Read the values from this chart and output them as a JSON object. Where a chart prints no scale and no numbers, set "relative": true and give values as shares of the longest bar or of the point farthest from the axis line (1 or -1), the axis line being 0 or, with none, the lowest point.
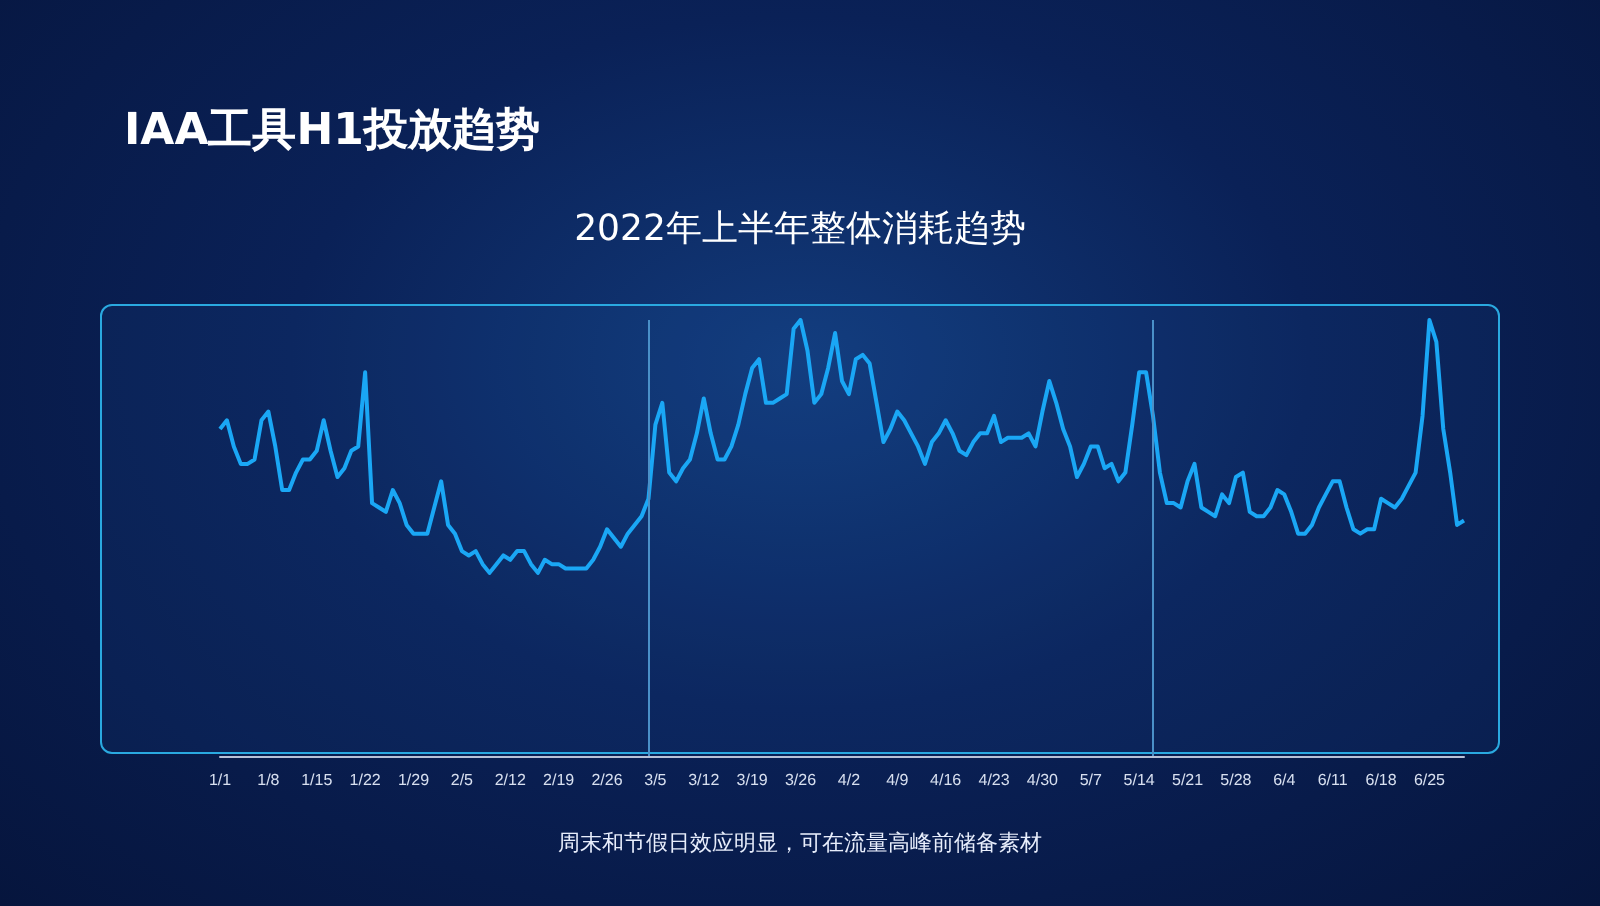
{
  "chart_data": {
    "type": "line",
    "title": "IAA工具H1投放趋势",
    "subtitle": "2022年上半年整体消耗趋势",
    "annotations": [
      "周末和节假日效应明显，可在流量高峰前储备素材"
    ],
    "relative": true,
    "color": "#1aa7f5",
    "x": [
      "--01-01",
      "--01-02",
      "--01-03",
      "--01-04",
      "--01-05",
      "--01-06",
      "--01-07",
      "--01-08",
      "--01-09",
      "--01-10",
      "--01-11",
      "--01-12",
      "--01-13",
      "--01-14",
      "--01-15",
      "--01-16",
      "--01-17",
      "--01-18",
      "--01-19",
      "--01-20",
      "--01-21",
      "--01-22",
      "--01-23",
      "--01-24",
      "--01-25",
      "--01-26",
      "--01-27",
      "--01-28",
      "--01-29",
      "--01-30",
      "--01-31",
      "--02-01",
      "--02-02",
      "--02-03",
      "--02-04",
      "--02-05",
      "--02-06",
      "--02-07",
      "--02-08",
      "--02-09",
      "--02-10",
      "--02-11",
      "--02-12",
      "--02-13",
      "--02-14",
      "--02-15",
      "--02-16",
      "--02-17",
      "--02-18",
      "--02-19",
      "--02-20",
      "--02-21",
      "--02-22",
      "--02-23",
      "--02-24",
      "--02-25",
      "--02-26",
      "--02-27",
      "--02-28",
      "--03-01",
      "--03-02",
      "--03-03",
      "--03-04",
      "--03-05",
      "--03-06",
      "--03-07",
      "--03-08",
      "--03-09",
      "--03-10",
      "--03-11",
      "--03-12",
      "--03-13",
      "--03-14",
      "--03-15",
      "--03-16",
      "--03-17",
      "--03-18",
      "--03-19",
      "--03-20",
      "--03-21",
      "--03-22",
      "--03-23",
      "--03-24",
      "--03-25",
      "--03-26",
      "--03-27",
      "--03-28",
      "--03-29",
      "--03-30",
      "--03-31",
      "--04-01",
      "--04-02",
      "--04-03",
      "--04-04",
      "--04-05",
      "--04-06",
      "--04-07",
      "--04-08",
      "--04-09",
      "--04-10",
      "--04-11",
      "--04-12",
      "--04-13",
      "--04-14",
      "--04-15",
      "--04-16",
      "--04-17",
      "--04-18",
      "--04-19",
      "--04-20",
      "--04-21",
      "--04-22",
      "--04-23",
      "--04-24",
      "--04-25",
      "--04-26",
      "--04-27",
      "--04-28",
      "--04-29",
      "--04-30",
      "--05-01",
      "--05-02",
      "--05-03",
      "--05-04",
      "--05-05",
      "--05-06",
      "--05-07",
      "--05-08",
      "--05-09",
      "--05-10",
      "--05-11",
      "--05-12",
      "--05-13",
      "--05-14",
      "--05-15",
      "--05-16",
      "--05-17",
      "--05-18",
      "--05-19",
      "--05-20",
      "--05-21",
      "--05-22",
      "--05-23",
      "--05-24",
      "--05-25",
      "--05-26",
      "--05-27",
      "--05-28",
      "--05-29",
      "--05-30",
      "--05-31",
      "--06-01",
      "--06-02",
      "--06-03",
      "--06-04",
      "--06-05",
      "--06-06",
      "--06-07",
      "--06-08",
      "--06-09",
      "--06-10",
      "--06-11",
      "--06-12",
      "--06-13",
      "--06-14",
      "--06-15",
      "--06-16",
      "--06-17",
      "--06-18",
      "--06-19",
      "--06-20",
      "--06-21",
      "--06-22",
      "--06-23",
      "--06-24",
      "--06-25",
      "--06-26",
      "--06-27",
      "--06-28",
      "--06-29",
      "--06-30"
    ],
    "values": [
      0.75,
      0.77,
      0.71,
      0.67,
      0.67,
      0.68,
      0.77,
      0.79,
      0.71,
      0.61,
      0.61,
      0.65,
      0.68,
      0.68,
      0.7,
      0.77,
      0.7,
      0.64,
      0.66,
      0.7,
      0.71,
      0.88,
      0.58,
      0.57,
      0.56,
      0.61,
      0.58,
      0.53,
      0.51,
      0.51,
      0.51,
      0.57,
      0.63,
      0.53,
      0.51,
      0.47,
      0.46,
      0.47,
      0.44,
      0.42,
      0.44,
      0.46,
      0.45,
      0.47,
      0.47,
      0.44,
      0.42,
      0.45,
      0.44,
      0.44,
      0.43,
      0.43,
      0.43,
      0.43,
      0.45,
      0.48,
      0.52,
      0.5,
      0.48,
      0.51,
      0.53,
      0.55,
      0.59,
      0.76,
      0.81,
      0.65,
      0.63,
      0.66,
      0.68,
      0.74,
      0.82,
      0.74,
      0.68,
      0.68,
      0.71,
      0.76,
      0.83,
      0.89,
      0.91,
      0.81,
      0.81,
      0.82,
      0.83,
      0.98,
      1,
      0.93,
      0.81,
      0.83,
      0.89,
      0.97,
      0.86,
      0.83,
      0.91,
      0.92,
      0.9,
      0.81,
      0.72,
      0.75,
      0.79,
      0.77,
      0.74,
      0.71,
      0.67,
      0.72,
      0.74,
      0.77,
      0.74,
      0.7,
      0.69,
      0.72,
      0.74,
      0.74,
      0.78,
      0.72,
      0.73,
      0.73,
      0.73,
      0.74,
      0.71,
      0.79,
      0.86,
      0.81,
      0.75,
      0.71,
      0.64,
      0.67,
      0.71,
      0.71,
      0.66,
      0.67,
      0.63,
      0.65,
      0.76,
      0.88,
      0.88,
      0.78,
      0.65,
      0.58,
      0.58,
      0.57,
      0.63,
      0.67,
      0.57,
      0.56,
      0.55,
      0.6,
      0.58,
      0.64,
      0.65,
      0.56,
      0.55,
      0.55,
      0.57,
      0.61,
      0.6,
      0.56,
      0.51,
      0.51,
      0.53,
      0.57,
      0.6,
      0.63,
      0.63,
      0.57,
      0.52,
      0.51,
      0.52,
      0.52,
      0.59,
      0.58,
      0.57,
      0.59,
      0.62,
      0.65,
      0.78,
      1,
      0.95,
      0.75,
      0.65,
      0.53,
      0.54
    ],
    "xlim": [
      "--01-01",
      "--06-30"
    ],
    "xticks": [
      {
        "value": "--01-01",
        "label": "1/1"
      },
      {
        "value": "--01-08",
        "label": "1/8"
      },
      {
        "value": "--01-15",
        "label": "1/15"
      },
      {
        "value": "--01-22",
        "label": "1/22"
      },
      {
        "value": "--01-29",
        "label": "1/29"
      },
      {
        "value": "--02-05",
        "label": "2/5"
      },
      {
        "value": "--02-12",
        "label": "2/12"
      },
      {
        "value": "--02-19",
        "label": "2/19"
      },
      {
        "value": "--02-26",
        "label": "2/26"
      },
      {
        "value": "--03-05",
        "label": "3/5"
      },
      {
        "value": "--03-12",
        "label": "3/12"
      },
      {
        "value": "--03-19",
        "label": "3/19"
      },
      {
        "value": "--03-26",
        "label": "3/26"
      },
      {
        "value": "--04-02",
        "label": "4/2"
      },
      {
        "value": "--04-09",
        "label": "4/9"
      },
      {
        "value": "--04-16",
        "label": "4/16"
      },
      {
        "value": "--04-23",
        "label": "4/23"
      },
      {
        "value": "--04-30",
        "label": "4/30"
      },
      {
        "value": "--05-07",
        "label": "5/7"
      },
      {
        "value": "--05-14",
        "label": "5/14"
      },
      {
        "value": "--05-21",
        "label": "5/21"
      },
      {
        "value": "--05-28",
        "label": "5/28"
      },
      {
        "value": "--06-04",
        "label": "6/4"
      },
      {
        "value": "--06-11",
        "label": "6/11"
      },
      {
        "value": "--06-18",
        "label": "6/18"
      },
      {
        "value": "--06-25",
        "label": "6/25"
      }
    ],
    "ref_lines": [
      {
        "axis": "x",
        "value": "--03-04",
        "color": "#4a90c8"
      },
      {
        "axis": "x",
        "value": "--05-16",
        "color": "#4a90c8"
      }
    ]
  }
}
